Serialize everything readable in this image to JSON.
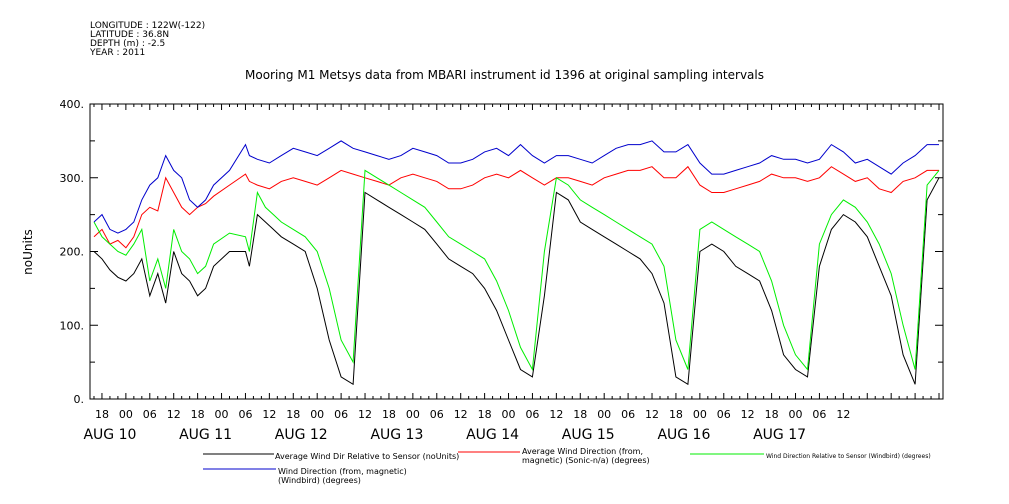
{
  "meta": {
    "longitude": "LONGITUDE : 122W(-122)",
    "latitude": "LATITUDE : 36.8N",
    "depth": "DEPTH (m) : -2.5",
    "year": "YEAR : 2011"
  },
  "chart_data": {
    "type": "line",
    "title": "Mooring M1 Metsys data from MBARI instrument id 1396 at original sampling intervals",
    "ylabel": "noUnits",
    "ylim": [
      0,
      400
    ],
    "yticks": [
      "0.",
      "100.",
      "200.",
      "300.",
      "400."
    ],
    "xlim_hours": [
      -9,
      205
    ],
    "hour_ticks": [
      "18",
      "00",
      "06",
      "12",
      "18",
      "00",
      "06",
      "12",
      "18",
      "00",
      "06",
      "12",
      "18",
      "00",
      "06",
      "12",
      "18",
      "00",
      "06",
      "12",
      "18",
      "00",
      "06",
      "12",
      "18",
      "00",
      "06",
      "12",
      "18",
      "00",
      "06",
      "12"
    ],
    "day_labels": [
      "AUG 10",
      "AUG 11",
      "AUG 12",
      "AUG 13",
      "AUG 14",
      "AUG 15",
      "AUG 16",
      "AUG 17"
    ],
    "grid": false,
    "legend_position": "bottom",
    "series": [
      {
        "name": "Average Wind Dir Relative to Sensor (noUnits)",
        "color": "#000000",
        "x": [
          -8,
          -6,
          -4,
          -2,
          0,
          2,
          4,
          6,
          8,
          10,
          12,
          14,
          16,
          18,
          20,
          22,
          26,
          30,
          31,
          33,
          35,
          37,
          39,
          42,
          45,
          48,
          51,
          54,
          57,
          60,
          63,
          66,
          69,
          72,
          75,
          78,
          81,
          84,
          87,
          90,
          93,
          96,
          99,
          102,
          105,
          108,
          111,
          114,
          117,
          120,
          123,
          126,
          129,
          132,
          135,
          138,
          141,
          144,
          147,
          150,
          153,
          156,
          159,
          162,
          165,
          168,
          171,
          174,
          177,
          180,
          183,
          186,
          189,
          192,
          195,
          198,
          201,
          204
        ],
        "values": [
          200,
          190,
          175,
          165,
          160,
          170,
          190,
          140,
          170,
          130,
          200,
          170,
          160,
          140,
          150,
          180,
          200,
          200,
          180,
          250,
          240,
          230,
          220,
          210,
          200,
          150,
          80,
          30,
          20,
          280,
          270,
          260,
          250,
          240,
          230,
          210,
          190,
          180,
          170,
          150,
          120,
          80,
          40,
          30,
          140,
          280,
          270,
          240,
          230,
          220,
          210,
          200,
          190,
          170,
          130,
          30,
          20,
          200,
          210,
          200,
          180,
          170,
          160,
          120,
          60,
          40,
          30,
          180,
          230,
          250,
          240,
          220,
          180,
          140,
          60,
          20,
          270,
          300
        ]
      },
      {
        "name": "Average Wind Direction (from, magnetic) (Sonic-n/a) (degrees)",
        "color": "#ff0000",
        "x": [
          -8,
          -6,
          -4,
          -2,
          0,
          2,
          4,
          6,
          8,
          10,
          12,
          14,
          16,
          18,
          20,
          22,
          26,
          30,
          31,
          33,
          36,
          39,
          42,
          45,
          48,
          51,
          54,
          57,
          60,
          63,
          66,
          69,
          72,
          75,
          78,
          81,
          84,
          87,
          90,
          93,
          96,
          99,
          102,
          105,
          108,
          111,
          114,
          117,
          120,
          123,
          126,
          129,
          132,
          135,
          138,
          141,
          144,
          147,
          150,
          153,
          156,
          159,
          162,
          165,
          168,
          171,
          174,
          177,
          180,
          183,
          186,
          189,
          192,
          195,
          198,
          201,
          204
        ],
        "values": [
          220,
          230,
          210,
          215,
          205,
          220,
          250,
          260,
          255,
          300,
          280,
          260,
          250,
          260,
          265,
          275,
          290,
          305,
          295,
          290,
          285,
          295,
          300,
          295,
          290,
          300,
          310,
          305,
          300,
          295,
          290,
          300,
          305,
          300,
          295,
          285,
          285,
          290,
          300,
          305,
          300,
          310,
          300,
          290,
          300,
          300,
          295,
          290,
          300,
          305,
          310,
          310,
          315,
          300,
          300,
          315,
          290,
          280,
          280,
          285,
          290,
          295,
          305,
          300,
          300,
          295,
          300,
          315,
          305,
          295,
          300,
          285,
          280,
          295,
          300,
          310,
          310
        ]
      },
      {
        "name": "Wind Direction Relative to Sensor (Windbird) (degrees)",
        "color": "#00ee00",
        "x": [
          -8,
          -6,
          -4,
          -2,
          0,
          2,
          4,
          6,
          8,
          10,
          12,
          14,
          16,
          18,
          20,
          22,
          26,
          30,
          31,
          33,
          35,
          37,
          39,
          42,
          45,
          48,
          51,
          54,
          57,
          60,
          63,
          66,
          69,
          72,
          75,
          78,
          81,
          84,
          87,
          90,
          93,
          96,
          99,
          102,
          105,
          108,
          111,
          114,
          117,
          120,
          123,
          126,
          129,
          132,
          135,
          138,
          141,
          144,
          147,
          150,
          153,
          156,
          159,
          162,
          165,
          168,
          171,
          174,
          177,
          180,
          183,
          186,
          189,
          192,
          195,
          198,
          201,
          204
        ],
        "values": [
          240,
          220,
          210,
          200,
          195,
          210,
          230,
          160,
          190,
          150,
          230,
          200,
          190,
          170,
          180,
          210,
          225,
          220,
          200,
          280,
          260,
          250,
          240,
          230,
          220,
          200,
          150,
          80,
          50,
          310,
          300,
          290,
          280,
          270,
          260,
          240,
          220,
          210,
          200,
          190,
          160,
          120,
          70,
          40,
          200,
          300,
          290,
          270,
          260,
          250,
          240,
          230,
          220,
          210,
          180,
          80,
          40,
          230,
          240,
          230,
          220,
          210,
          200,
          160,
          100,
          60,
          40,
          210,
          250,
          270,
          260,
          240,
          210,
          170,
          100,
          40,
          290,
          310
        ]
      },
      {
        "name": "Wind Direction (from, magnetic) (Windbird) (degrees)",
        "color": "#0000cc",
        "x": [
          -8,
          -6,
          -4,
          -2,
          0,
          2,
          4,
          6,
          8,
          10,
          12,
          14,
          16,
          18,
          20,
          22,
          26,
          30,
          31,
          33,
          36,
          39,
          42,
          45,
          48,
          51,
          54,
          57,
          60,
          63,
          66,
          69,
          72,
          75,
          78,
          81,
          84,
          87,
          90,
          93,
          96,
          99,
          102,
          105,
          108,
          111,
          114,
          117,
          120,
          123,
          126,
          129,
          132,
          135,
          138,
          141,
          144,
          147,
          150,
          153,
          156,
          159,
          162,
          165,
          168,
          171,
          174,
          177,
          180,
          183,
          186,
          189,
          192,
          195,
          198,
          201,
          204
        ],
        "values": [
          240,
          250,
          230,
          225,
          230,
          240,
          270,
          290,
          300,
          330,
          310,
          300,
          270,
          260,
          270,
          290,
          310,
          345,
          330,
          325,
          320,
          330,
          340,
          335,
          330,
          340,
          350,
          340,
          335,
          330,
          325,
          330,
          340,
          335,
          330,
          320,
          320,
          325,
          335,
          340,
          330,
          345,
          330,
          320,
          330,
          330,
          325,
          320,
          330,
          340,
          345,
          345,
          350,
          335,
          335,
          345,
          320,
          305,
          305,
          310,
          315,
          320,
          330,
          325,
          325,
          320,
          325,
          345,
          335,
          320,
          325,
          315,
          305,
          320,
          330,
          345,
          345
        ]
      }
    ]
  }
}
